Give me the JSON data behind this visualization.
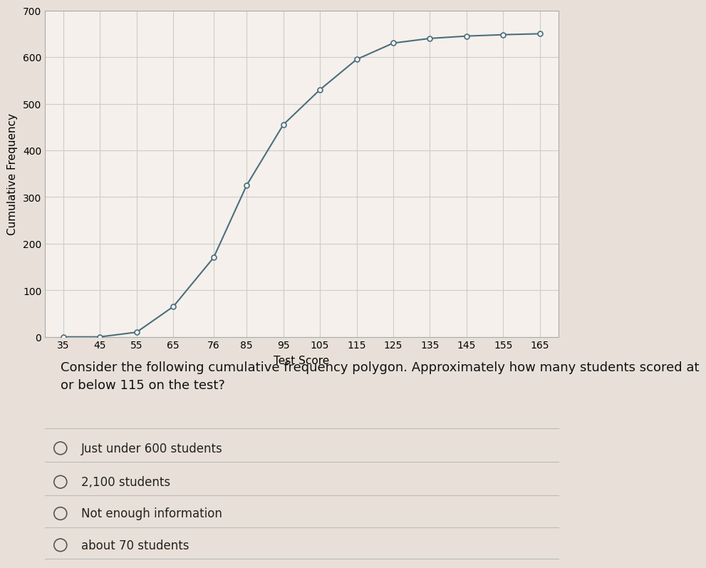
{
  "x_values": [
    35,
    45,
    55,
    65,
    76,
    85,
    95,
    105,
    115,
    125,
    135,
    145,
    155,
    165
  ],
  "y_values": [
    0,
    0,
    10,
    65,
    170,
    325,
    455,
    530,
    595,
    630,
    640,
    645,
    648,
    650
  ],
  "xlabel": "Test Score",
  "ylabel": "Cumulative Frequency",
  "ylim": [
    0,
    700
  ],
  "yticks": [
    0,
    100,
    200,
    300,
    400,
    500,
    600,
    700
  ],
  "line_color": "#4a6e7e",
  "marker_face": "#f0f0f0",
  "background_color": "#e8e0d8",
  "plot_bg_color": "#f5f0eb",
  "grid_color": "#cccccc",
  "question_text": "Consider the following cumulative frequency polygon. Approximately how many students scored at\nor below 115 on the test?",
  "options": [
    "Just under 600 students",
    "2,100 students",
    "Not enough information",
    "about 70 students"
  ],
  "question_fontsize": 13,
  "option_fontsize": 12,
  "axis_label_fontsize": 11,
  "tick_fontsize": 10
}
